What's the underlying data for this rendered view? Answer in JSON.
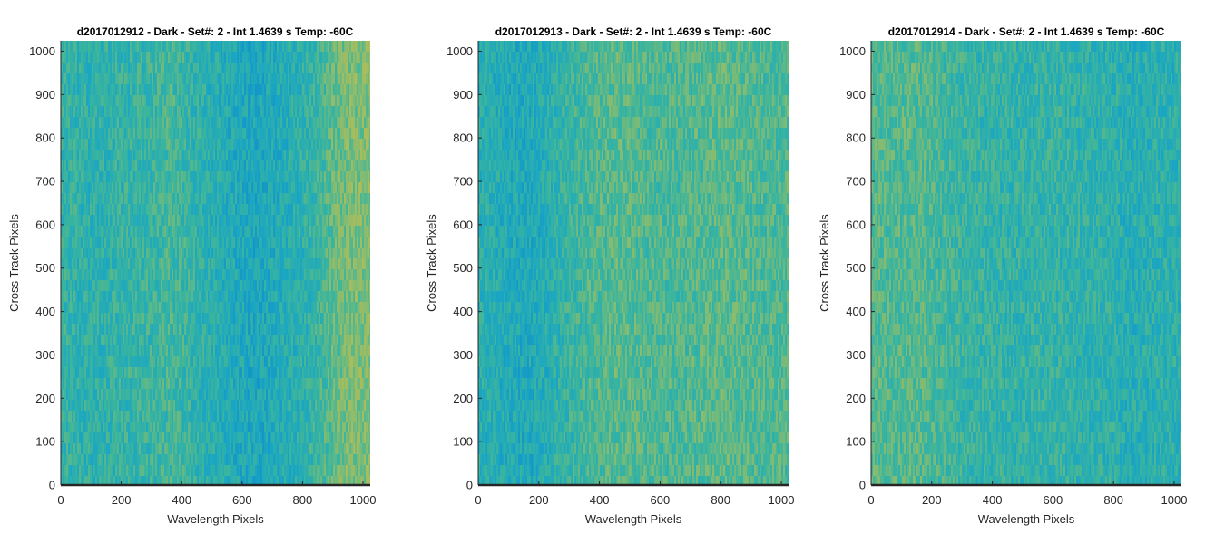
{
  "chart_data": [
    {
      "type": "heatmap",
      "title": "d2017012912 - Dark - Set#: 2 - Int 1.4639 s Temp: -60C",
      "xlabel": "Wavelength Pixels",
      "ylabel": "Cross Track Pixels",
      "xlim": [
        0,
        1024
      ],
      "ylim": [
        0,
        1024
      ],
      "xticks": [
        "0",
        "200",
        "400",
        "600",
        "800",
        "1000"
      ],
      "yticks": [
        "0",
        "100",
        "200",
        "300",
        "400",
        "500",
        "600",
        "700",
        "800",
        "900",
        "1000"
      ],
      "colormap": [
        "#0f87c9",
        "#1aa6c3",
        "#3bb59d",
        "#8ebc6c",
        "#c9be4a"
      ],
      "column_profile": {
        "x": [
          0,
          50,
          100,
          150,
          200,
          250,
          300,
          350,
          400,
          450,
          500,
          550,
          600,
          650,
          700,
          750,
          800,
          850,
          900,
          950,
          1024
        ],
        "level": [
          0.45,
          0.42,
          0.4,
          0.42,
          0.44,
          0.45,
          0.47,
          0.52,
          0.48,
          0.42,
          0.38,
          0.33,
          0.3,
          0.28,
          0.32,
          0.36,
          0.4,
          0.48,
          0.62,
          0.7,
          0.72
        ]
      }
    },
    {
      "type": "heatmap",
      "title": "d2017012913 - Dark - Set#: 2 - Int 1.4639 s Temp: -60C",
      "xlabel": "Wavelength Pixels",
      "ylabel": "Cross Track Pixels",
      "xlim": [
        0,
        1024
      ],
      "ylim": [
        0,
        1024
      ],
      "xticks": [
        "0",
        "200",
        "400",
        "600",
        "800",
        "1000"
      ],
      "yticks": [
        "0",
        "100",
        "200",
        "300",
        "400",
        "500",
        "600",
        "700",
        "800",
        "900",
        "1000"
      ],
      "colormap": [
        "#0f87c9",
        "#1aa6c3",
        "#3bb59d",
        "#8ebc6c",
        "#c9be4a"
      ],
      "column_profile": {
        "x": [
          0,
          50,
          100,
          150,
          200,
          250,
          300,
          350,
          400,
          450,
          500,
          550,
          600,
          650,
          700,
          750,
          800,
          850,
          900,
          950,
          1024
        ],
        "level": [
          0.4,
          0.36,
          0.32,
          0.3,
          0.34,
          0.4,
          0.46,
          0.52,
          0.56,
          0.58,
          0.58,
          0.56,
          0.55,
          0.54,
          0.56,
          0.58,
          0.6,
          0.58,
          0.56,
          0.55,
          0.56
        ]
      }
    },
    {
      "type": "heatmap",
      "title": "d2017012914 - Dark - Set#: 2 - Int 1.4639 s Temp: -60C",
      "xlabel": "Wavelength Pixels",
      "ylabel": "Cross Track Pixels",
      "xlim": [
        0,
        1024
      ],
      "ylim": [
        0,
        1024
      ],
      "xticks": [
        "0",
        "200",
        "400",
        "600",
        "800",
        "1000"
      ],
      "yticks": [
        "0",
        "100",
        "200",
        "300",
        "400",
        "500",
        "600",
        "700",
        "800",
        "900",
        "1000"
      ],
      "colormap": [
        "#0f87c9",
        "#1aa6c3",
        "#3bb59d",
        "#8ebc6c",
        "#c9be4a"
      ],
      "column_profile": {
        "x": [
          0,
          50,
          100,
          150,
          200,
          250,
          300,
          350,
          400,
          450,
          500,
          550,
          600,
          650,
          700,
          750,
          800,
          850,
          900,
          950,
          1024
        ],
        "level": [
          0.58,
          0.56,
          0.56,
          0.58,
          0.54,
          0.5,
          0.47,
          0.45,
          0.44,
          0.43,
          0.43,
          0.44,
          0.44,
          0.43,
          0.42,
          0.41,
          0.4,
          0.36,
          0.38,
          0.4,
          0.38
        ]
      }
    }
  ]
}
